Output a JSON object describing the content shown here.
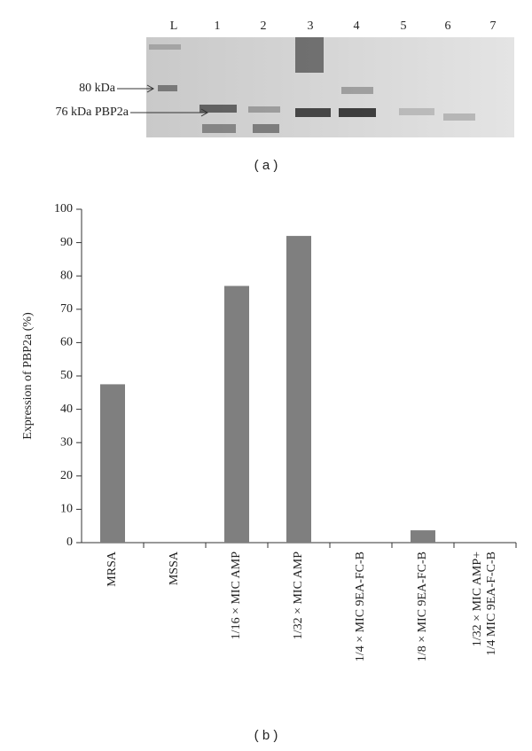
{
  "gel": {
    "lanes": [
      "L",
      "1",
      "2",
      "3",
      "4",
      "5",
      "6",
      "7"
    ],
    "markers": [
      "80 kDa",
      "76 kDa PBP2a"
    ],
    "caption": "( a )"
  },
  "chart_data": {
    "type": "bar",
    "caption": "( b )",
    "y_label": "Expression of PBP2a (%)",
    "categories": [
      "MRSA",
      "MSSA",
      "1/16 × MIC AMP",
      "1/32 × MIC AMP",
      "1/4 × MIC 9EA-FC-B",
      "1/8 × MIC 9EA-FC-B",
      "1/32 × MIC AMP+\n1/4 MIC 9EA-F-C-B"
    ],
    "values": [
      47.5,
      0,
      77,
      92,
      0,
      3.7,
      0
    ],
    "color": "#7f7f7f",
    "ylim": [
      0,
      100
    ],
    "yticks": [
      0,
      10,
      20,
      30,
      40,
      50,
      60,
      70,
      80,
      90,
      100
    ],
    "grid": false
  }
}
